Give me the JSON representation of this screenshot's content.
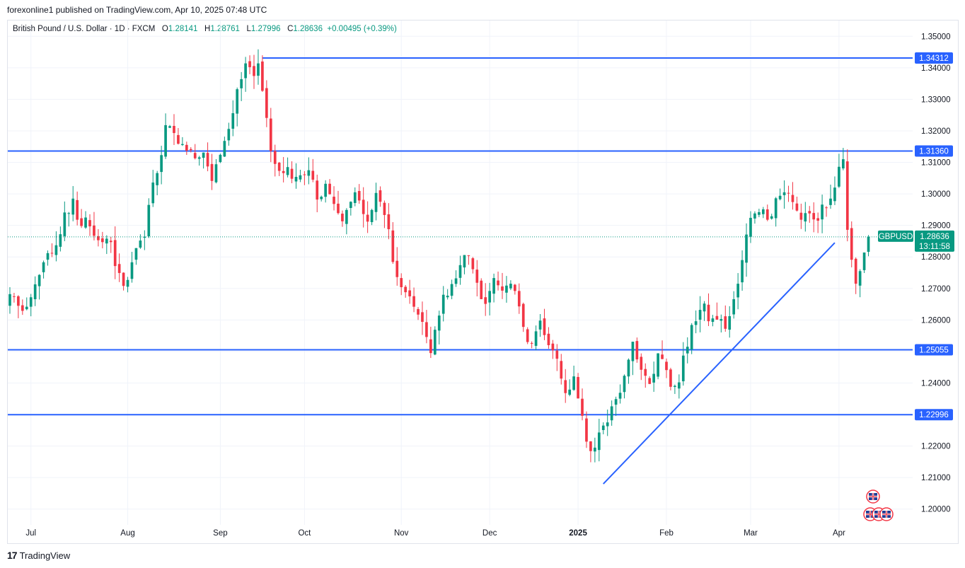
{
  "publisher": "forexonline1 published on TradingView.com, Apr 10, 2025 07:48 UTC",
  "legend": {
    "symbol": "British Pound / U.S. Dollar · 1D · FXCM",
    "o_label": "O",
    "o": "1.28141",
    "h_label": "H",
    "h": "1.28761",
    "l_label": "L",
    "l": "1.27996",
    "c_label": "C",
    "c": "1.28636",
    "change": "+0.00495 (+0.39%)"
  },
  "footer": {
    "brand": "TradingView",
    "logo": "17"
  },
  "colors": {
    "up": "#089981",
    "down": "#f23645",
    "line": "#2962ff",
    "grid": "#f0f3fa",
    "text": "#131722"
  },
  "chart_data": {
    "type": "candlestick",
    "symbol": "GBPUSD",
    "timeframe": "1D",
    "ylim": [
      1.195,
      1.355
    ],
    "y_ticks": [
      "1.20000",
      "1.21000",
      "1.22000",
      "1.23000",
      "1.24000",
      "1.25000",
      "1.26000",
      "1.27000",
      "1.28000",
      "1.29000",
      "1.30000",
      "1.31000",
      "1.32000",
      "1.33000",
      "1.34000",
      "1.35000"
    ],
    "x_ticks": [
      {
        "label": "Jul",
        "bar": 5,
        "bold": false
      },
      {
        "label": "Aug",
        "bar": 28,
        "bold": false
      },
      {
        "label": "Sep",
        "bar": 50,
        "bold": false
      },
      {
        "label": "Oct",
        "bar": 70,
        "bold": false
      },
      {
        "label": "Nov",
        "bar": 93,
        "bold": false
      },
      {
        "label": "Dec",
        "bar": 114,
        "bold": false
      },
      {
        "label": "2025",
        "bar": 135,
        "bold": true
      },
      {
        "label": "Feb",
        "bar": 156,
        "bold": false
      },
      {
        "label": "Mar",
        "bar": 176,
        "bold": false
      },
      {
        "label": "Apr",
        "bar": 197,
        "bold": false
      }
    ],
    "levels": [
      {
        "label": "1.34312",
        "value": 1.34312,
        "start_bar": 60
      },
      {
        "label": "1.31360",
        "value": 1.3136,
        "start_bar": 0
      },
      {
        "label": "1.25055",
        "value": 1.25055,
        "start_bar": 0
      },
      {
        "label": "1.22996",
        "value": 1.22996,
        "start_bar": 0
      }
    ],
    "trendline": {
      "from": {
        "bar": 141,
        "price": 1.208
      },
      "to": {
        "bar": 196,
        "price": 1.2845
      }
    },
    "last": {
      "name": "GBPUSD",
      "price": "1.28636",
      "countdown": "13:11:58",
      "value": 1.28636
    },
    "bars_total": 215,
    "closes": [
      1.2682,
      1.2675,
      1.2645,
      1.2629,
      1.2642,
      1.2672,
      1.2713,
      1.2743,
      1.2783,
      1.2812,
      1.2812,
      1.2837,
      1.2872,
      1.2941,
      1.2939,
      1.2985,
      1.2918,
      1.2898,
      1.2925,
      1.2897,
      1.2867,
      1.2853,
      1.2847,
      1.2858,
      1.2847,
      1.2771,
      1.2749,
      1.2708,
      1.2727,
      1.2783,
      1.2828,
      1.2852,
      1.2864,
      1.2965,
      1.3036,
      1.3066,
      1.3123,
      1.3218,
      1.3215,
      1.3193,
      1.3159,
      1.3158,
      1.3137,
      1.3139,
      1.3113,
      1.3116,
      1.3131,
      1.3087,
      1.3041,
      1.3094,
      1.3124,
      1.3168,
      1.3206,
      1.3256,
      1.3332,
      1.3364,
      1.3414,
      1.3402,
      1.3374,
      1.3414,
      1.3327,
      1.3241,
      1.3136,
      1.3095,
      1.3073,
      1.3066,
      1.3085,
      1.3048,
      1.3054,
      1.3059,
      1.3061,
      1.3075,
      1.3045,
      1.2982,
      1.2991,
      1.3032,
      1.2999,
      1.2968,
      1.2939,
      1.2913,
      1.2949,
      1.2975,
      1.3005,
      1.2979,
      1.2936,
      1.2912,
      1.2949,
      1.3003,
      1.2975,
      1.2933,
      1.2888,
      1.2784,
      1.2736,
      1.2704,
      1.2688,
      1.2675,
      1.2642,
      1.2617,
      1.2594,
      1.2546,
      1.2495,
      1.2569,
      1.2614,
      1.268,
      1.2677,
      1.2714,
      1.2732,
      1.2774,
      1.2806,
      1.2803,
      1.2761,
      1.2718,
      1.2666,
      1.2651,
      1.2692,
      1.2733,
      1.271,
      1.2693,
      1.2709,
      1.2715,
      1.2692,
      1.2643,
      1.2578,
      1.253,
      1.2525,
      1.2564,
      1.2598,
      1.2552,
      1.252,
      1.2504,
      1.2477,
      1.2414,
      1.2368,
      1.2379,
      1.2421,
      1.2351,
      1.2296,
      1.2214,
      1.2184,
      1.2195,
      1.2243,
      1.2265,
      1.2275,
      1.2326,
      1.2349,
      1.2369,
      1.2423,
      1.2474,
      1.2531,
      1.2475,
      1.2442,
      1.2423,
      1.2397,
      1.2429,
      1.2494,
      1.2476,
      1.2441,
      1.2388,
      1.2391,
      1.2402,
      1.2487,
      1.2515,
      1.2584,
      1.2596,
      1.2632,
      1.2652,
      1.2596,
      1.2605,
      1.2601,
      1.2603,
      1.2572,
      1.2612,
      1.2666,
      1.2715,
      1.279,
      1.2871,
      1.2924,
      1.2938,
      1.2942,
      1.2951,
      1.2918,
      1.2929,
      1.2986,
      1.2994,
      1.3005,
      1.3003,
      1.2974,
      1.2947,
      1.2918,
      1.2939,
      1.2938,
      1.2919,
      1.2915,
      1.2966,
      1.2956,
      1.2985,
      1.302,
      1.3086,
      1.311,
      1.2886,
      1.2791,
      1.2715,
      1.2755,
      1.2814,
      1.2864
    ],
    "line_color": "#089981"
  }
}
